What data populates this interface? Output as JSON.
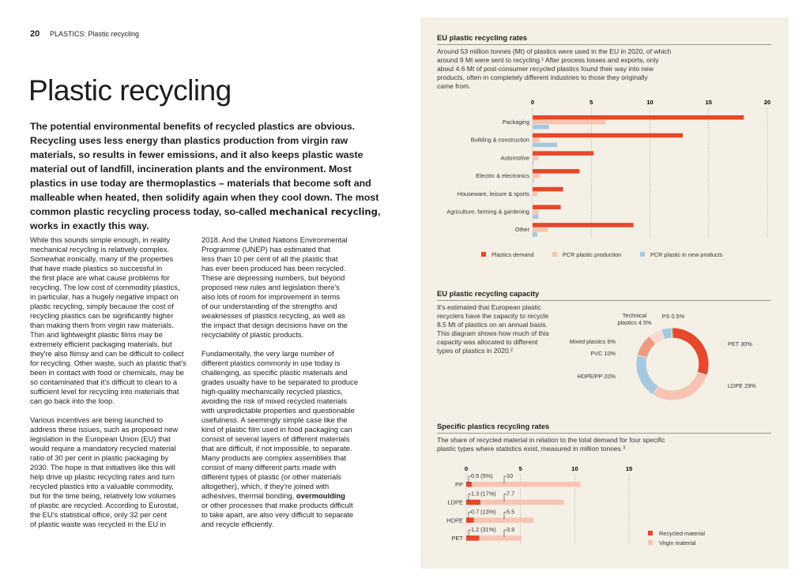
{
  "page": {
    "number": "20",
    "running_title": "PLASTICS: Plastic recycling",
    "title": "Plastic recycling"
  },
  "lead": {
    "before": "The potential environmental benefits of recycled plastics are obvious.\nRecycling uses less energy than plastics production from virgin raw\nmaterials, so results in fewer emissions, and it also keeps plastic waste\nmaterial out of landfill, incineration plants and the environment. Most\nplastics in use today are thermoplastics – materials that become soft and\nmalleable when heated, then solidify again when they cool down. The most\ncommon plastic recycling process today, so-called ",
    "bold": "mechanical recycling",
    "after": ",\nworks in exactly this way."
  },
  "body": {
    "col1": "While this sounds simple enough, in reality\nmechanical recycling is relatively complex.\nSomewhat ironically, many of the properties\nthat have made plastics so successful in\nthe first place are what cause problems for\nrecycling. The low cost of commodity plastics,\nin particular, has a hugely negative impact on\nplastic recycling, simply because the cost of\nrecycling plastics can be significantly higher\nthan making them from virgin raw materials.\nThin and lightweight plastic films may be\nextremely efficient packaging materials, but\nthey're also flimsy and can be difficult to collect\nfor recycling. Other waste, such as plastic that's\nbeen in contact with food or chemicals, may be\nso contaminated that it's difficult to clean to a\nsufficient level for recycling into materials that\ncan go back into the loop.\n\nVarious incentives are being launched to\naddress these issues, such as proposed new\nlegislation in the European Union (EU) that\nwould require a mandatory recycled material\nratio of 30 per cent in plastic packaging by\n2030. The hope is that initiatives like this will\nhelp drive up plastic recycling rates and turn\nrecycled plastics into a valuable commodity,\nbut for the time being, relatively low volumes\nof plastic are recycled. According to Eurostat,\nthe EU's statistical office, only 32 per cent\nof plastic waste was recycled in the EU in",
    "col2_before": "2018. And the United Nations Environmental\nProgramme (UNEP) has estimated that\nless than 10 per cent of all the plastic that\nhas ever been produced has been recycled.\nThese are depressing numbers, but beyond\nproposed new rules and legislation there's\nalso lots of room for improvement in terms\nof our understanding of the strengths and\nweaknesses of plastics recycling, as well as\nthe impact that design decisions have on the\nrecyclability of plastic products.\n\nFundamentally, the very large number of\ndifferent plastics commonly in use today is\nchallenging, as specific plastic materials and\ngrades usually have to be separated to produce\nhigh-quality mechanically recycled plastics,\navoiding the risk of mixed recycled materials\nwith unpredictable properties and questionable\nusefulness. A seemingly simple case like the\nkind of plastic film used in food packaging can\nconsist of several layers of different materials\nthat are difficult, if not impossible, to separate.\nMany products are complex assemblies that\nconsist of many different parts made with\ndifferent types of plastic (or other materials\naltogether), which, if they're joined with\nadhesives, thermal bonding, ",
    "col2_bold": "overmoulding",
    "col2_after": "\nor other processes that make products difficult\nto take apart, are also very difficult to separate\nand recycle efficiently."
  },
  "sections": {
    "rates": {
      "title": "EU plastic recycling rates",
      "text": "Around 53 million tonnes (Mt) of plastics were used in the EU in 2020, of which\naround 9 Mt were sent to recycling.¹ After process losses and exports, only\nabout 4.6 Mt of post-consumer recycled plastics found their way into new\nproducts, often in completely different industries to those they originally\ncame from."
    },
    "capacity": {
      "title": "EU plastic recycling capacity",
      "text": "It's estimated that European plastic\nrecyclers have the capacity to recycle\n8.5 Mt of plastics on an annual basis.\nThis diagram shows how much of this\ncapacity was allocated to different\ntypes of plastics in 2020.²"
    },
    "specific": {
      "title": "Specific plastics recycling rates",
      "text": "The share of recycled material in relation to the total demand for four specific\nplastic types where statistics exist, measured in million tonnes.³"
    }
  },
  "colors": {
    "red": "#e5482a",
    "pink": "#f7c4b4",
    "blue": "#a7c8df",
    "salmon": "#ee9a80",
    "palepink": "#f9d9cf",
    "bg": "#f4f0e6"
  },
  "chart_data": [
    {
      "type": "bar",
      "orientation": "horizontal",
      "xlim": [
        0,
        20
      ],
      "ticks": [
        "0",
        "5",
        "10",
        "15",
        "20"
      ],
      "grid": true,
      "legend": "bottom",
      "categories": [
        "Packaging",
        "Building & construction",
        "Automotive",
        "Electric & electronics",
        "Houseware, leisure & sports",
        "Agriculture, farming & gardening",
        "Other"
      ],
      "series": [
        {
          "name": "Plastics demand",
          "color": "#e5482a",
          "values": [
            18,
            12.8,
            5.2,
            4.0,
            2.6,
            2.4,
            8.6
          ]
        },
        {
          "name": "PCR plastic production",
          "color": "#f7c4b4",
          "values": [
            6.2,
            0.6,
            0.5,
            0.6,
            0.4,
            0.5,
            1.3
          ]
        },
        {
          "name": "PCR plastic in new products",
          "color": "#a7c8df",
          "values": [
            1.4,
            2.1,
            0.1,
            0.1,
            0,
            0.5,
            0.4
          ]
        }
      ]
    },
    {
      "type": "pie",
      "donut": true,
      "slices": [
        {
          "label": "PET 30%",
          "value": 30,
          "color": "#e5482a"
        },
        {
          "label": "LDPE 29%",
          "value": 29,
          "color": "#f7c4b4"
        },
        {
          "label": "HDPE/PP 20%",
          "value": 20,
          "color": "#a7c8df"
        },
        {
          "label": "PVC 10%",
          "value": 10,
          "color": "#ee9a80"
        },
        {
          "label": "Mixed plastics 6%",
          "value": 6,
          "color": "#f9d9cf"
        },
        {
          "label": "Technical plastics 4.5%",
          "value": 4.5,
          "color": "#a7c8df"
        },
        {
          "label": "PS 0.5%",
          "value": 0.5,
          "color": "#5a6a78"
        }
      ]
    },
    {
      "type": "bar",
      "orientation": "horizontal",
      "stacked": true,
      "xlim": [
        0,
        15
      ],
      "ticks": [
        "0",
        "5",
        "10",
        "15"
      ],
      "grid": true,
      "legend": "bottom-right",
      "categories": [
        "PP",
        "LDPE",
        "HDPE",
        "PET"
      ],
      "series": [
        {
          "name": "Recycled material",
          "color": "#e5482a",
          "values": [
            0.5,
            1.3,
            0.7,
            1.2
          ],
          "labels": [
            "0.5 (5%)",
            "1.3 (17%)",
            "0.7 (13%)",
            "1.2 (31%)"
          ]
        },
        {
          "name": "Virgin material",
          "color": "#f7c4b4",
          "values": [
            10,
            7.7,
            5.5,
            3.9
          ],
          "labels": [
            "10",
            "7.7",
            "5.5",
            "3.9"
          ]
        }
      ]
    }
  ]
}
